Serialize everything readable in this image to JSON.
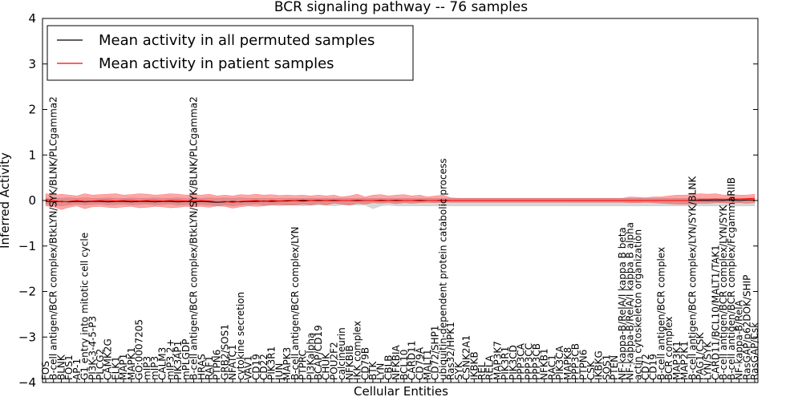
{
  "chart_data": {
    "type": "line",
    "title": "BCR signaling pathway -- 76 samples",
    "xlabel": "Cellular Entities",
    "ylabel": "Inferred Activity",
    "ylim": [
      -4,
      4
    ],
    "yticks": [
      -4,
      -3,
      -2,
      -1,
      0,
      1,
      2,
      3,
      4
    ],
    "grid": false,
    "legend_position": "top-left",
    "legend": [
      "Mean activity in all permuted samples",
      "Mean activity in patient samples"
    ],
    "colors": {
      "permuted": "#000000",
      "patient": "#ff0000",
      "patient_band": "#ff0000",
      "permuted_band": "#b0b0b0"
    },
    "categories": [
      "FOS",
      "B-cell antigen/BCR complex/BtkLYN/SYK/BLNK/PLCgamma2",
      "BLNK",
      "FOS1",
      "AP-1",
      "G1 entry into mitotic cell cycle",
      "PI3K-3-4-5-P3",
      "PLCG2",
      "CAMK2G",
      "ELK1",
      "MAP1",
      "MAPK1",
      "GO:0007205",
      "mIP3",
      "mIP3",
      "CALM3",
      "mIP3,2+",
      "PIK3AP1",
      "mPLGDP",
      "B-cell antigen/BCR complex/BtkLYN/SYK/BLNK/PLCgamma2",
      "HRAS",
      "RAF1",
      "PTPN6",
      "GRB2/SOS1",
      "NFATC1",
      "cytokine secretion",
      "VAV1",
      "CD19",
      "CD22",
      "PIK3R1",
      "JUN",
      "MAPK3",
      "B-cell antigen/BCR complex/LYN",
      "PTPRC",
      "PI3Kalpha",
      "BCAP/CD19",
      "CHUK",
      "POU2F2",
      "calcineurin",
      "NFKBIB",
      "IKK complex",
      "CD79B",
      "BTK",
      "LYN",
      "CBLB",
      "NFKBIA",
      "BCL10",
      "CARD11",
      "CD79A",
      "MALT1",
      "CD72/SHP1",
      "ubiquitin-dependent protein catabolic process",
      "Ras32/HPK1",
      "SYK",
      "CSNK2A1",
      "IKBKB",
      "REL",
      "RELA",
      "MAP3K7",
      "PIK3R1",
      "PIK3CD",
      "PPP3CA",
      "PPP3CC",
      "PPP3CB",
      "NFKB1",
      "RAC1",
      "PIK3CA",
      "MAPK8",
      "PPP3CB",
      "PTPN6",
      "CSK",
      "IKBKG",
      "SOS1",
      "PTEN",
      "NF-kappa-B/RelA/I kappa B beta",
      "NF-kappa-B/RelA/I kappa B alpha",
      "actin cytoskeleton organization",
      "CD72",
      "CD19",
      "B-cell antigen/BCR complex",
      "BCR complex",
      "MAP3K1",
      "MAP2K1",
      "B-cell antigen/BCR complex/LYN/SYK/BLNK",
      "PAG1/CSK",
      "LYN/SYK",
      "CARD11/BCL10/MALT1/TAK1",
      "B-cell antigen/BCR complex/LYN/SYK",
      "B-cell antigen/BCR complex/FcgammaRIIB",
      "NF-kappa-B/RelA",
      "RasGAP/p62DOK/SHIP",
      "RasGAP/Csk"
    ],
    "series": [
      {
        "name": "Mean activity in all permuted samples",
        "values": [
          -0.02,
          -0.03,
          -0.02,
          -0.03,
          -0.02,
          -0.03,
          -0.02,
          -0.02,
          -0.03,
          -0.02,
          -0.02,
          -0.03,
          -0.02,
          -0.02,
          -0.03,
          -0.02,
          -0.02,
          -0.03,
          -0.02,
          -0.03,
          -0.02,
          -0.03,
          -0.04,
          -0.03,
          -0.02,
          -0.03,
          -0.02,
          -0.02,
          -0.01,
          -0.02,
          -0.01,
          -0.01,
          0.0,
          -0.01,
          0.0,
          0.0,
          0.0,
          0.0,
          0.0,
          0.0,
          0.0,
          0.0,
          0.0,
          0.0,
          0.0,
          0.0,
          0.0,
          0.0,
          0.0,
          0.0,
          0.0,
          0.0,
          0.0,
          0.0,
          0.0,
          0.0,
          0.0,
          0.0,
          0.0,
          0.0,
          0.0,
          0.0,
          0.0,
          0.0,
          0.0,
          0.0,
          0.0,
          0.0,
          0.0,
          0.0,
          0.0,
          0.0,
          0.0,
          0.0,
          0.0,
          0.0,
          0.0,
          0.0,
          0.0,
          0.0,
          0.0,
          0.0,
          0.0,
          0.0,
          0.0,
          0.0,
          0.0,
          0.0,
          0.01,
          0.0,
          0.01,
          0.01
        ]
      },
      {
        "name": "Mean activity in patient samples",
        "values": [
          0.02,
          0.0,
          -0.03,
          -0.02,
          0.0,
          -0.02,
          -0.01,
          0.0,
          0.0,
          -0.01,
          0.0,
          0.0,
          -0.01,
          0.0,
          0.0,
          -0.01,
          0.0,
          0.0,
          -0.01,
          0.0,
          0.0,
          -0.01,
          -0.03,
          -0.02,
          -0.04,
          -0.02,
          -0.01,
          0.0,
          -0.02,
          0.0,
          -0.01,
          0.0,
          0.0,
          0.01,
          0.0,
          0.01,
          0.0,
          0.01,
          0.0,
          0.0,
          0.01,
          0.0,
          0.0,
          0.01,
          0.0,
          0.01,
          0.0,
          0.0,
          0.01,
          0.0,
          0.0,
          0.01,
          0.0,
          0.0,
          0.0,
          0.0,
          0.0,
          0.0,
          0.0,
          0.0,
          0.0,
          0.0,
          0.0,
          0.0,
          0.0,
          0.0,
          0.0,
          0.0,
          0.0,
          0.0,
          0.0,
          0.0,
          0.0,
          0.0,
          0.0,
          0.0,
          0.0,
          0.0,
          0.0,
          0.0,
          0.0,
          0.0,
          0.0,
          0.0,
          0.02,
          0.02,
          0.03,
          0.02,
          0.03,
          0.03,
          0.04,
          0.05
        ]
      }
    ],
    "patient_band": {
      "upper": [
        0.15,
        0.12,
        0.14,
        0.12,
        0.1,
        0.15,
        0.12,
        0.13,
        0.14,
        0.15,
        0.12,
        0.13,
        0.15,
        0.14,
        0.12,
        0.13,
        0.15,
        0.14,
        0.12,
        0.13,
        0.12,
        0.14,
        0.1,
        0.12,
        0.1,
        0.13,
        0.12,
        0.14,
        0.12,
        0.13,
        0.11,
        0.12,
        0.11,
        0.12,
        0.1,
        0.12,
        0.1,
        0.12,
        0.08,
        0.1,
        0.14,
        0.08,
        0.12,
        0.13,
        0.1,
        0.12,
        0.13,
        0.1,
        0.12,
        0.08,
        0.1,
        0.12,
        0.06,
        0.05,
        0.05,
        0.05,
        0.05,
        0.05,
        0.05,
        0.05,
        0.05,
        0.05,
        0.05,
        0.05,
        0.05,
        0.05,
        0.05,
        0.05,
        0.05,
        0.05,
        0.05,
        0.05,
        0.05,
        0.05,
        0.05,
        0.08,
        0.07,
        0.06,
        0.08,
        0.08,
        0.1,
        0.12,
        0.12,
        0.13,
        0.15,
        0.14,
        0.15,
        0.12,
        0.13,
        0.12,
        0.12,
        0.14
      ],
      "lower": [
        -0.12,
        -0.14,
        -0.2,
        -0.15,
        -0.12,
        -0.18,
        -0.14,
        -0.13,
        -0.15,
        -0.16,
        -0.14,
        -0.13,
        -0.16,
        -0.15,
        -0.13,
        -0.14,
        -0.16,
        -0.15,
        -0.13,
        -0.14,
        -0.13,
        -0.15,
        -0.12,
        -0.13,
        -0.17,
        -0.14,
        -0.12,
        -0.13,
        -0.12,
        -0.1,
        -0.11,
        -0.1,
        -0.1,
        -0.08,
        -0.1,
        -0.07,
        -0.1,
        -0.06,
        -0.08,
        -0.1,
        -0.06,
        -0.08,
        -0.05,
        -0.06,
        -0.05,
        -0.07,
        -0.05,
        -0.06,
        -0.05,
        -0.04,
        -0.05,
        -0.04,
        -0.04,
        -0.04,
        -0.04,
        -0.04,
        -0.04,
        -0.04,
        -0.04,
        -0.04,
        -0.04,
        -0.04,
        -0.04,
        -0.04,
        -0.04,
        -0.04,
        -0.04,
        -0.04,
        -0.04,
        -0.04,
        -0.04,
        -0.04,
        -0.04,
        -0.04,
        -0.04,
        -0.05,
        -0.05,
        -0.04,
        -0.05,
        -0.06,
        -0.07,
        -0.08,
        -0.08,
        -0.08,
        -0.06,
        -0.06,
        -0.05,
        -0.05,
        -0.06,
        -0.05,
        -0.06,
        -0.05
      ]
    },
    "permuted_band": {
      "upper": [
        0.05,
        0.06,
        0.05,
        0.06,
        0.05,
        0.06,
        0.05,
        0.05,
        0.06,
        0.05,
        0.05,
        0.06,
        0.05,
        0.05,
        0.06,
        0.05,
        0.05,
        0.06,
        0.05,
        0.06,
        0.05,
        0.06,
        0.05,
        0.06,
        0.05,
        0.06,
        0.05,
        0.05,
        0.05,
        0.05,
        0.05,
        0.05,
        0.05,
        0.05,
        0.05,
        0.05,
        0.05,
        0.05,
        0.05,
        0.05,
        0.05,
        0.05,
        0.05,
        0.05,
        0.05,
        0.05,
        0.05,
        0.05,
        0.05,
        0.05,
        0.05,
        0.05,
        0.05,
        0.05,
        0.05,
        0.05,
        0.05,
        0.05,
        0.05,
        0.05,
        0.05,
        0.05,
        0.05,
        0.05,
        0.05,
        0.05,
        0.05,
        0.05,
        0.05,
        0.05,
        0.05,
        0.05,
        0.05,
        0.05,
        0.05,
        0.05,
        0.05,
        0.05,
        0.05,
        0.05,
        0.05,
        0.05,
        0.05,
        0.05,
        0.05,
        0.05,
        0.05,
        0.05,
        0.05,
        0.05,
        0.05,
        0.05
      ],
      "lower": [
        -0.08,
        -0.1,
        -0.12,
        -0.1,
        -0.08,
        -0.1,
        -0.09,
        -0.08,
        -0.1,
        -0.09,
        -0.08,
        -0.1,
        -0.09,
        -0.08,
        -0.1,
        -0.09,
        -0.08,
        -0.1,
        -0.09,
        -0.1,
        -0.09,
        -0.1,
        -0.12,
        -0.1,
        -0.12,
        -0.1,
        -0.09,
        -0.08,
        -0.1,
        -0.09,
        -0.08,
        -0.1,
        -0.1,
        -0.12,
        -0.1,
        -0.1,
        -0.1,
        -0.12,
        -0.1,
        -0.1,
        -0.1,
        -0.1,
        -0.18,
        -0.12,
        -0.1,
        -0.12,
        -0.12,
        -0.12,
        -0.12,
        -0.12,
        -0.12,
        -0.12,
        -0.12,
        -0.12,
        -0.12,
        -0.12,
        -0.12,
        -0.12,
        -0.12,
        -0.12,
        -0.12,
        -0.12,
        -0.12,
        -0.12,
        -0.12,
        -0.12,
        -0.12,
        -0.12,
        -0.12,
        -0.12,
        -0.12,
        -0.12,
        -0.12,
        -0.12,
        -0.12,
        -0.12,
        -0.12,
        -0.12,
        -0.12,
        -0.12,
        -0.12,
        -0.12,
        -0.12,
        -0.12,
        -0.12,
        -0.12,
        -0.12,
        -0.12,
        -0.12,
        -0.12,
        -0.12,
        -0.12
      ]
    }
  }
}
